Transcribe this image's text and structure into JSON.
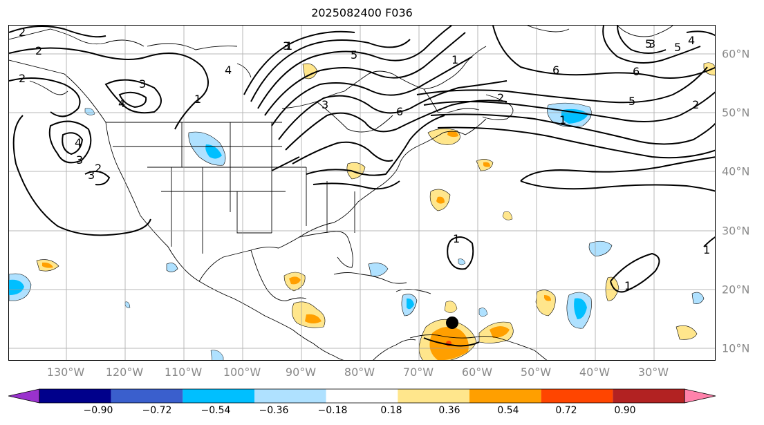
{
  "title": "2025082400 F036",
  "map": {
    "lon_labels": [
      "130°W",
      "120°W",
      "110°W",
      "100°W",
      "90°W",
      "80°W",
      "70°W",
      "60°W",
      "50°W",
      "40°W",
      "30°W"
    ],
    "lat_labels": [
      "60°N",
      "50°N",
      "40°N",
      "30°N",
      "20°N",
      "10°N"
    ],
    "contour_labels": [
      "2",
      "2",
      "2",
      "3",
      "4",
      "3",
      "4",
      "3",
      "2",
      "1",
      "3",
      "4",
      "5",
      "3",
      "2",
      "1",
      "6",
      "5",
      "2",
      "3",
      "6",
      "6",
      "5",
      "4",
      "5",
      "1",
      "1",
      "1",
      "1",
      "1",
      "1",
      "1"
    ],
    "marker": "storm-center-dot"
  },
  "colorbar": {
    "tick_labels": [
      "−0.90",
      "−0.72",
      "−0.54",
      "−0.36",
      "−0.18",
      "0.18",
      "0.36",
      "0.54",
      "0.72",
      "0.90"
    ],
    "colors": [
      "#9a32cd",
      "#00008b",
      "#3a5fcd",
      "#00bfff",
      "#afe1ff",
      "#ffffff",
      "#ffe68c",
      "#ff9f00",
      "#ff4500",
      "#b22222",
      "#ff82ab"
    ]
  }
}
